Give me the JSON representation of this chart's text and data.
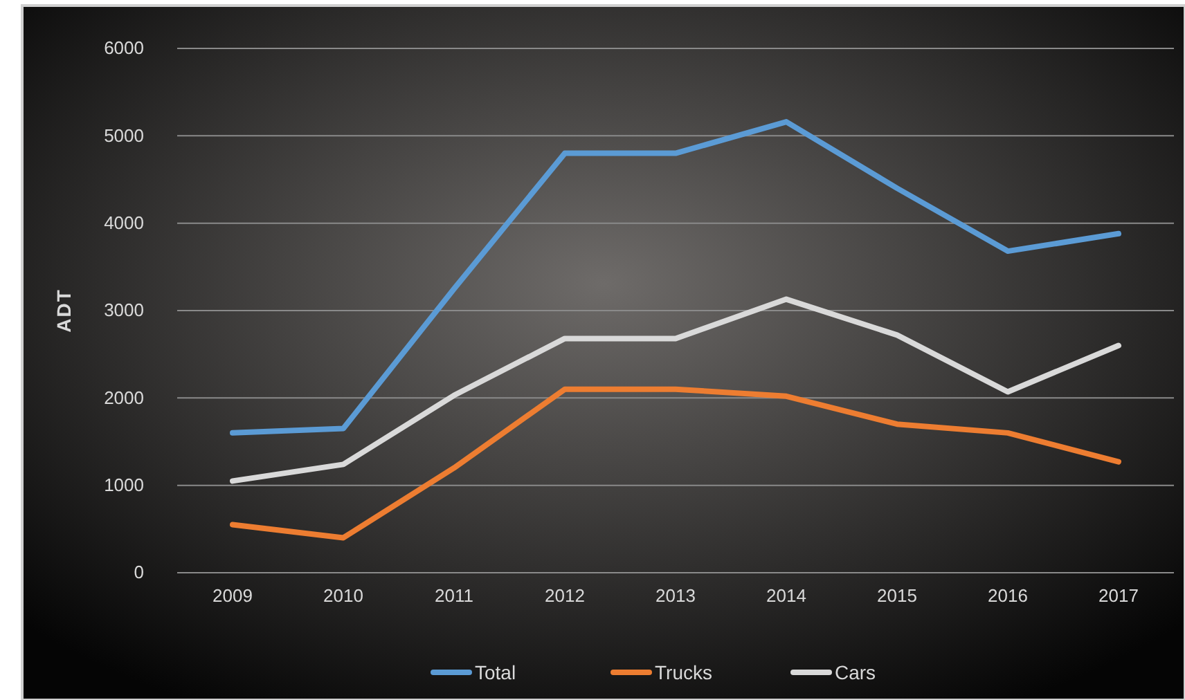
{
  "chart_data": {
    "type": "line",
    "ylabel": "ADT",
    "categories": [
      "2009",
      "2010",
      "2011",
      "2012",
      "2013",
      "2014",
      "2015",
      "2016",
      "2017"
    ],
    "series": [
      {
        "name": "Total",
        "color": "#5b9bd5",
        "values": [
          1600,
          1650,
          3250,
          4800,
          4800,
          5160,
          4400,
          3680,
          3880
        ]
      },
      {
        "name": "Trucks",
        "color": "#ed7d31",
        "values": [
          550,
          400,
          1200,
          2100,
          2100,
          2020,
          1700,
          1600,
          1270
        ]
      },
      {
        "name": "Cars",
        "color": "#d9d9d9",
        "values": [
          1050,
          1240,
          2030,
          2680,
          2680,
          3130,
          2720,
          2070,
          2600
        ]
      }
    ],
    "ylim": [
      0,
      6000
    ],
    "yticks": [
      0,
      1000,
      2000,
      3000,
      4000,
      5000,
      6000
    ],
    "grid": "y",
    "legend": "bottom",
    "marker": "none",
    "line_style": "solid"
  }
}
